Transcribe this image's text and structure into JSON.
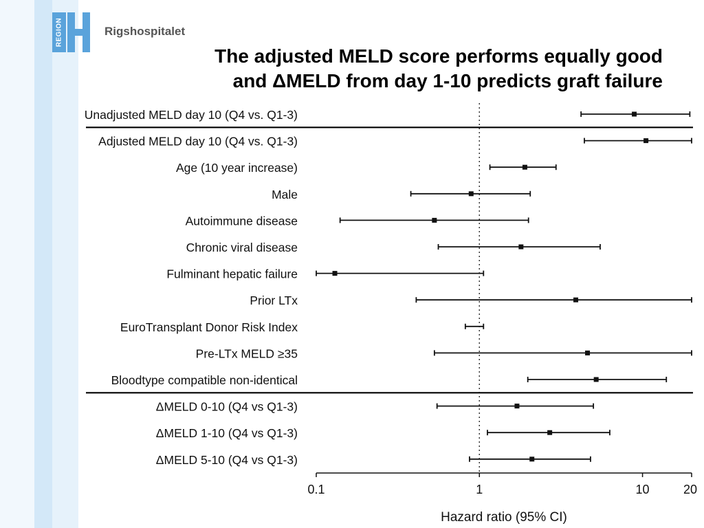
{
  "branding": {
    "region_label": "REGION",
    "hospital_name": "Rigshospitalet",
    "brand_color": "#5aa3db"
  },
  "slide": {
    "title_line1": "The adjusted MELD score performs equally good",
    "title_line2": "and ΔMELD from day 1-10 predicts graft failure"
  },
  "chart_data": {
    "type": "forest",
    "xscale": "log",
    "xlim": [
      0.1,
      20
    ],
    "xticks": [
      0.1,
      1,
      10,
      20
    ],
    "xtick_labels": [
      "0.1",
      "1",
      "10",
      "20"
    ],
    "xlabel": "Hazard ratio (95% CI)",
    "reference_line": 1,
    "rows": [
      {
        "label": "Unadjusted MELD day 10 (Q4 vs. Q1-3)",
        "hr": 8.9,
        "lo": 4.2,
        "hi": 19.5
      },
      {
        "label": "Adjusted MELD day 10 (Q4 vs. Q1-3)",
        "hr": 10.5,
        "lo": 4.4,
        "hi": 20
      },
      {
        "label": "Age (10 year increase)",
        "hr": 1.9,
        "lo": 1.16,
        "hi": 2.95
      },
      {
        "label": "Male",
        "hr": 0.89,
        "lo": 0.38,
        "hi": 2.05
      },
      {
        "label": "Autoimmune disease",
        "hr": 0.53,
        "lo": 0.14,
        "hi": 2.0
      },
      {
        "label": "Chronic viral disease",
        "hr": 1.8,
        "lo": 0.56,
        "hi": 5.5
      },
      {
        "label": "Fulminant hepatic failure",
        "hr": 0.13,
        "lo": 0.1,
        "hi": 1.06
      },
      {
        "label": "Prior LTx",
        "hr": 3.9,
        "lo": 0.41,
        "hi": 20
      },
      {
        "label": "EuroTransplant Donor Risk Index",
        "hr": 0.93,
        "lo": 0.82,
        "hi": 1.06
      },
      {
        "label": "Pre-LTx MELD ≥35",
        "hr": 4.6,
        "lo": 0.53,
        "hi": 20
      },
      {
        "label": "Bloodtype compatible non-identical",
        "hr": 5.2,
        "lo": 1.98,
        "hi": 14.0
      },
      {
        "label": "ΔMELD 0-10 (Q4 vs Q1-3)",
        "hr": 1.7,
        "lo": 0.55,
        "hi": 5.0
      },
      {
        "label": "ΔMELD 1-10 (Q4 vs Q1-3)",
        "hr": 2.7,
        "lo": 1.12,
        "hi": 6.3
      },
      {
        "label": "ΔMELD 5-10 (Q4 vs Q1-3)",
        "hr": 2.1,
        "lo": 0.87,
        "hi": 4.8
      }
    ],
    "group_separators_after_rows": [
      0,
      10
    ]
  }
}
